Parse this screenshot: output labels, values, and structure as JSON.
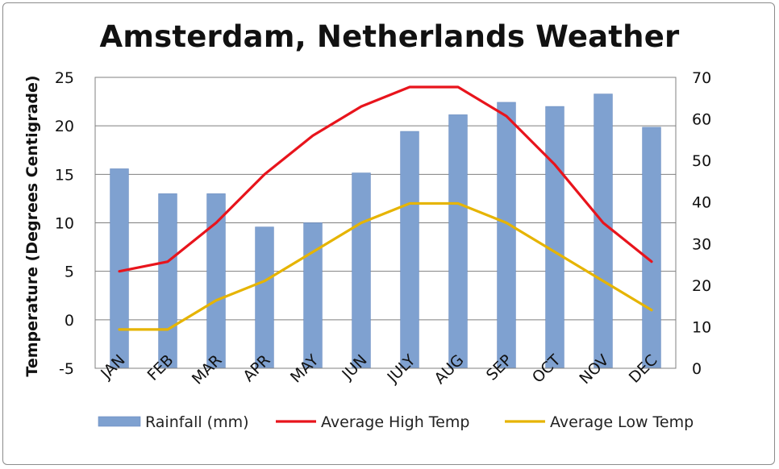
{
  "chart_data": {
    "type": "bar",
    "title": "Amsterdam, Netherlands Weather",
    "categories": [
      "JAN",
      "FEB",
      "MAR",
      "APR",
      "MAY",
      "JUN",
      "JULY",
      "AUG",
      "SEP",
      "OCT",
      "NOV",
      "DEC"
    ],
    "ylabel": "Temperature (Degrees Centigrade)",
    "xlabel": "",
    "ylim": [
      -5,
      25
    ],
    "y_ticks": [
      "25",
      "20",
      "15",
      "10",
      "5",
      "0",
      "-5"
    ],
    "y2lim": [
      0,
      70
    ],
    "y2_ticks": [
      "70",
      "60",
      "50",
      "40",
      "30",
      "20",
      "10",
      "0"
    ],
    "grid": true,
    "legend_position": "bottom",
    "series": [
      {
        "name": "Rainfall (mm)",
        "type": "bar",
        "axis": "right",
        "color": "#7fa1d0",
        "values": [
          48,
          42,
          42,
          34,
          35,
          47,
          57,
          61,
          64,
          63,
          66,
          58
        ]
      },
      {
        "name": "Average High Temp",
        "type": "line",
        "axis": "left",
        "color": "#e8141c",
        "values": [
          5,
          6,
          10,
          15,
          19,
          22,
          24,
          24,
          21,
          16,
          10,
          6
        ]
      },
      {
        "name": "Average Low Temp",
        "type": "line",
        "axis": "left",
        "color": "#e6b400",
        "values": [
          -1,
          -1,
          2,
          4,
          7,
          10,
          12,
          12,
          10,
          7,
          4,
          1
        ]
      }
    ]
  }
}
